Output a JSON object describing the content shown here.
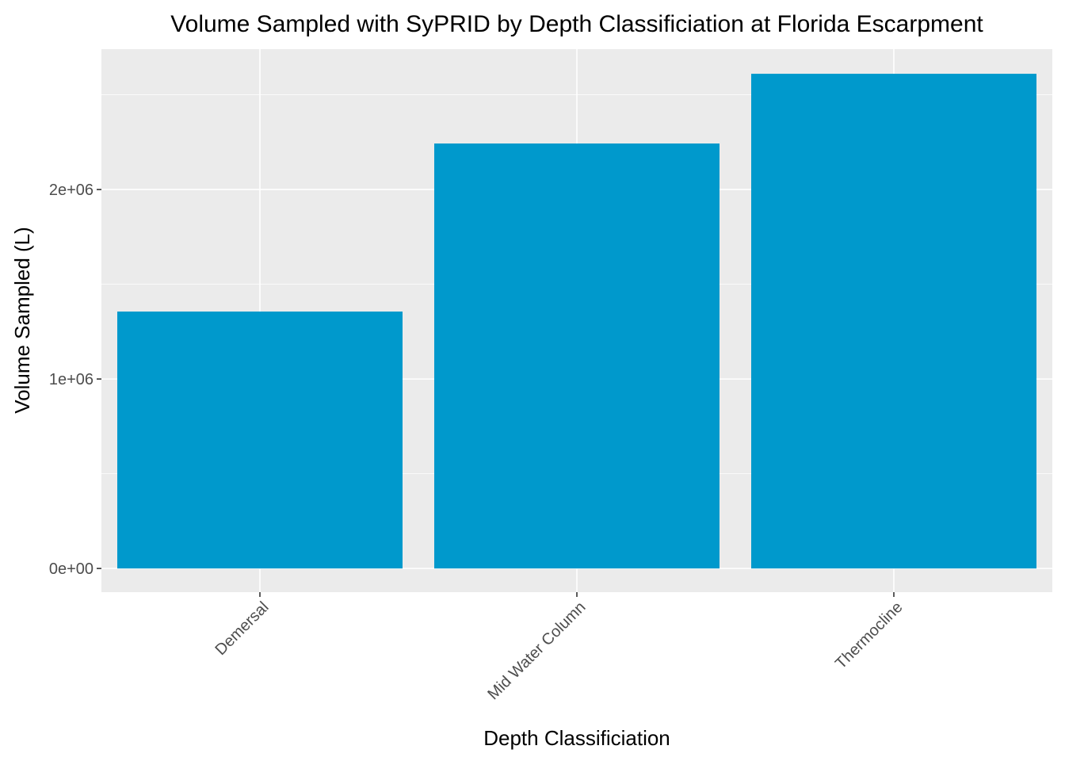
{
  "chart_data": {
    "type": "bar",
    "title": "Volume Sampled with SyPRID by Depth Classificiation at Florida Escarpment",
    "xlabel": "Depth Classificiation",
    "ylabel": "Volume Sampled (L)",
    "categories": [
      "Demersal",
      "Mid Water Column",
      "Thermocline"
    ],
    "values": [
      1356000,
      2243000,
      2611000
    ],
    "ylim": [
      -125000,
      2741000
    ],
    "yticks": [
      0,
      1000000,
      2000000
    ],
    "ytick_labels": [
      "0e+00",
      "1e+06",
      "2e+06"
    ],
    "grid": true,
    "bar_color": "#0099CC",
    "panel_color": "#EBEBEB"
  }
}
